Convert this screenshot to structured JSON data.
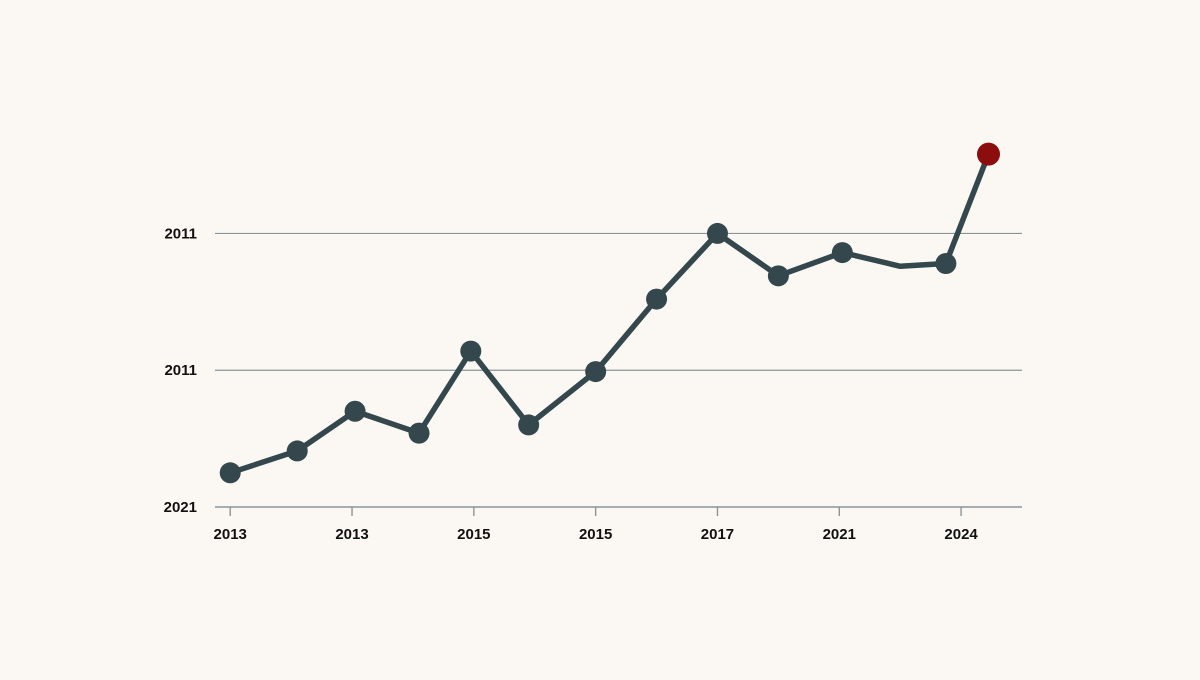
{
  "chart_data": {
    "type": "line",
    "title": "",
    "xlabel": "",
    "ylabel": "",
    "grid": true,
    "x_tick_labels": [
      "2013",
      "2013",
      "2015",
      "2015",
      "2017",
      "2021",
      "2024"
    ],
    "x_tick_positions": [
      0,
      2,
      4,
      6,
      8,
      10,
      12
    ],
    "y_tick_labels": [
      "2021",
      "2011",
      "2011"
    ],
    "y_tick_values": [
      0,
      1,
      2
    ],
    "ylim": [
      0,
      2.61
    ],
    "xlim": [
      -0.25,
      13.0
    ],
    "series": [
      {
        "name": "",
        "color": "#33474d",
        "points": [
          {
            "x": 0,
            "y": 0.25,
            "marker": true
          },
          {
            "x": 1.1,
            "y": 0.41,
            "marker": true
          },
          {
            "x": 2.05,
            "y": 0.7,
            "marker": true
          },
          {
            "x": 3.1,
            "y": 0.54,
            "marker": true
          },
          {
            "x": 3.95,
            "y": 1.14,
            "marker": true
          },
          {
            "x": 4.9,
            "y": 0.6,
            "marker": true
          },
          {
            "x": 6.0,
            "y": 0.99,
            "marker": true
          },
          {
            "x": 7.0,
            "y": 1.52,
            "marker": true
          },
          {
            "x": 8.0,
            "y": 2.0,
            "marker": true
          },
          {
            "x": 9.0,
            "y": 1.69,
            "marker": true
          },
          {
            "x": 10.05,
            "y": 1.86,
            "marker": true
          },
          {
            "x": 11.0,
            "y": 1.76,
            "marker": false
          },
          {
            "x": 11.75,
            "y": 1.78,
            "marker": true
          },
          {
            "x": 12.45,
            "y": 2.58,
            "marker": true,
            "highlight": true
          }
        ]
      }
    ],
    "highlight_color": "#8b0d0d",
    "axis_color": "#8a9499"
  }
}
